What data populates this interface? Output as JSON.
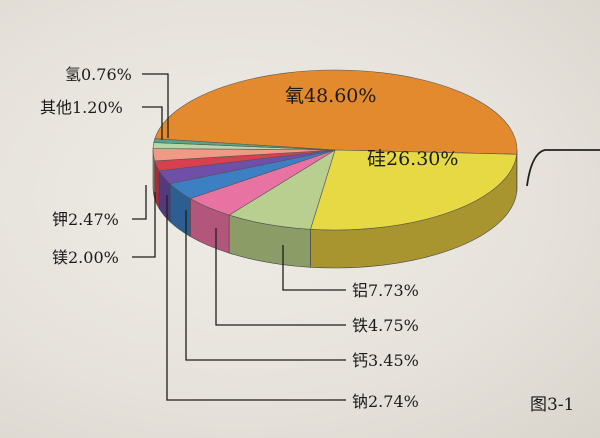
{
  "chart_data": {
    "type": "pie",
    "style": "3d-exploded-tilted",
    "title": "",
    "slices": [
      {
        "label": "氧",
        "value": 48.6,
        "display": "氧48.60%",
        "color": "#e3892e",
        "side": "#b06a22"
      },
      {
        "label": "硅",
        "value": 26.3,
        "display": "硅26.30%",
        "color": "#e6d944",
        "side": "#a8952f"
      },
      {
        "label": "铝",
        "value": 7.73,
        "display": "铝7.73%",
        "color": "#b9cf90",
        "side": "#8c9c66"
      },
      {
        "label": "铁",
        "value": 4.75,
        "display": "铁4.75%",
        "color": "#e873a3",
        "side": "#b3567c"
      },
      {
        "label": "钙",
        "value": 3.45,
        "display": "钙3.45%",
        "color": "#3c7fc2",
        "side": "#2d5e92"
      },
      {
        "label": "钠",
        "value": 2.74,
        "display": "钠2.74%",
        "color": "#6f4fa8",
        "side": "#523a7d"
      },
      {
        "label": "镁",
        "value": 2.0,
        "display": "镁2.00%",
        "color": "#d9404f",
        "side": "#a02f3a"
      },
      {
        "label": "钾",
        "value": 2.47,
        "display": "钾2.47%",
        "color": "#f09a86",
        "side": "#b97565"
      },
      {
        "label": "其他",
        "value": 1.2,
        "display": "其他1.20%",
        "color": "#b7d7a6",
        "side": "#8aa47c"
      },
      {
        "label": "氢",
        "value": 0.76,
        "display": "氢0.76%",
        "color": "#5aa58a",
        "side": "#41806a"
      }
    ]
  },
  "caption": "图3-1"
}
